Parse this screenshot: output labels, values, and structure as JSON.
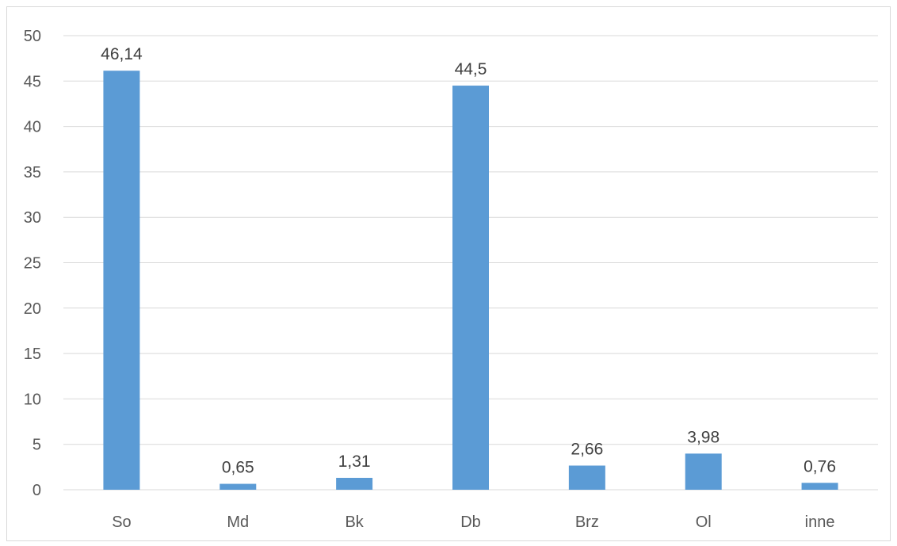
{
  "chart_data": {
    "type": "bar",
    "title": "",
    "xlabel": "",
    "ylabel": "",
    "categories": [
      "So",
      "Md",
      "Bk",
      "Db",
      "Brz",
      "Ol",
      "inne"
    ],
    "values": [
      46.14,
      0.65,
      1.31,
      44.5,
      2.66,
      3.98,
      0.76
    ],
    "data_labels": [
      "46,14",
      "0,65",
      "1,31",
      "44,5",
      "2,66",
      "3,98",
      "0,76"
    ],
    "ylim": [
      0,
      50
    ],
    "yticks": [
      0,
      5,
      10,
      15,
      20,
      25,
      30,
      35,
      40,
      45,
      50
    ],
    "grid": true,
    "legend": "none",
    "bar_color": "#5b9bd5"
  }
}
